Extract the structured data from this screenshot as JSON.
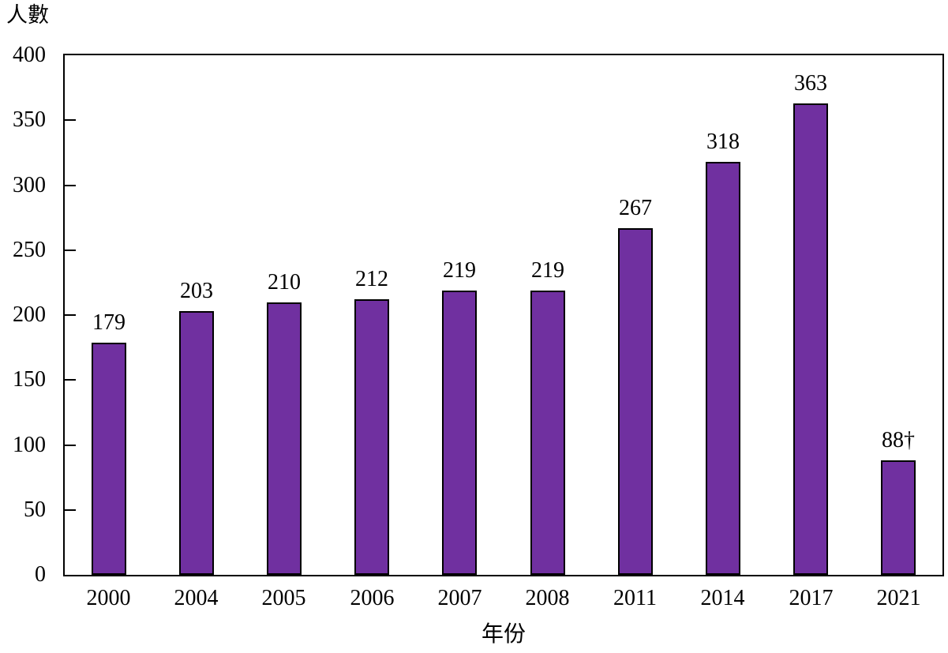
{
  "page": {
    "background": "#ffffff",
    "text_color": "#000000"
  },
  "chart_data": {
    "type": "bar",
    "title": "",
    "ylabel": "人數",
    "xlabel": "年份",
    "categories": [
      "2000",
      "2004",
      "2005",
      "2006",
      "2007",
      "2008",
      "2011",
      "2014",
      "2017",
      "2021"
    ],
    "values": [
      179,
      203,
      210,
      212,
      219,
      219,
      267,
      318,
      363,
      88
    ],
    "value_labels": [
      "179",
      "203",
      "210",
      "212",
      "219",
      "219",
      "267",
      "318",
      "363",
      "88†"
    ],
    "ylim": [
      0,
      400
    ],
    "ytick_step": 50,
    "yticks": [
      0,
      50,
      100,
      150,
      200,
      250,
      300,
      350,
      400
    ],
    "bar_color": "#7030A0",
    "bar_border_color": "#000000",
    "axis_color": "#000000",
    "grid": false,
    "legend": "none"
  }
}
